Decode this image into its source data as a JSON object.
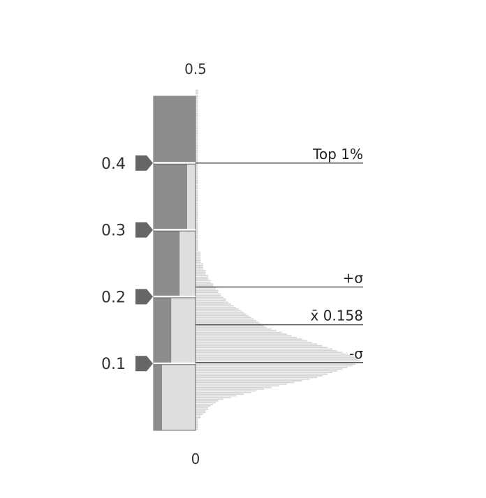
{
  "chart_data": {
    "type": "histogram",
    "orientation": "vertical",
    "y_axis": {
      "min": 0,
      "max": 0.5,
      "min_label": "0",
      "max_label": "0.5",
      "ticks": [
        {
          "value": 0.1,
          "label": "0.1"
        },
        {
          "value": 0.2,
          "label": "0.2"
        },
        {
          "value": 0.3,
          "label": "0.3"
        },
        {
          "value": 0.4,
          "label": "0.4"
        }
      ]
    },
    "gauge_bands": [
      {
        "from": 0.0,
        "to": 0.1,
        "dark_fraction": 0.2
      },
      {
        "from": 0.1,
        "to": 0.2,
        "dark_fraction": 0.42
      },
      {
        "from": 0.2,
        "to": 0.3,
        "dark_fraction": 0.62
      },
      {
        "from": 0.3,
        "to": 0.4,
        "dark_fraction": 0.8
      },
      {
        "from": 0.4,
        "to": 0.5,
        "dark_fraction": 1.0
      }
    ],
    "histogram": {
      "bin_width": 0.0025,
      "counts": [
        1,
        1,
        1,
        1,
        1,
        1,
        1,
        2,
        2,
        3,
        4,
        4,
        5,
        5,
        6,
        7,
        8,
        9,
        11,
        14,
        16,
        19,
        22,
        24,
        27,
        30,
        33,
        36,
        39,
        42,
        45,
        48,
        50,
        52,
        54,
        56,
        58,
        60,
        62,
        63,
        64,
        65,
        64,
        63,
        62,
        60,
        58,
        56,
        54,
        52,
        50,
        48,
        46,
        44,
        42,
        40,
        38,
        36,
        34,
        32,
        30,
        28,
        27,
        26,
        25,
        24,
        23,
        22,
        21,
        20,
        19,
        18,
        17,
        16,
        15,
        14,
        13,
        12,
        12,
        11,
        10,
        10,
        9,
        9,
        8,
        8,
        7,
        7,
        6,
        6,
        5,
        5,
        5,
        4,
        4,
        4,
        3,
        3,
        3,
        3,
        2,
        2,
        2,
        2,
        2,
        2,
        2,
        1,
        1,
        1,
        1,
        1,
        1,
        1,
        1,
        1,
        1,
        1,
        1,
        1,
        1,
        1,
        1,
        1,
        1,
        1,
        1,
        1,
        1,
        1,
        1,
        1,
        1,
        1,
        1,
        1,
        1,
        1,
        1,
        1,
        1,
        1,
        1,
        1,
        1,
        1,
        1,
        1,
        1,
        1,
        1,
        1,
        1,
        1,
        1,
        1,
        1,
        1,
        1,
        1,
        1,
        1,
        1,
        1,
        1,
        1,
        1,
        1,
        1,
        1,
        1,
        1,
        1,
        1,
        1,
        1,
        1,
        1,
        1,
        1,
        1,
        1,
        1,
        1,
        1,
        1,
        1,
        1,
        1,
        1,
        1,
        1,
        1,
        1,
        1,
        1,
        1,
        1,
        1,
        1,
        1,
        1,
        1,
        1
      ]
    },
    "reference_lines": [
      {
        "value": 0.1015,
        "label": "-σ"
      },
      {
        "value": 0.158,
        "label": "x̄ 0.158"
      },
      {
        "value": 0.2145,
        "label": "+σ"
      },
      {
        "value": 0.4,
        "label": "Top 1%"
      }
    ],
    "colors": {
      "band_dark": "#8c8c8c",
      "band_light": "#dedede",
      "band_border": "#666666",
      "histogram": "#d6d6d6",
      "ref_line": "#555555",
      "marker": "#666666",
      "text": "#333333"
    }
  }
}
